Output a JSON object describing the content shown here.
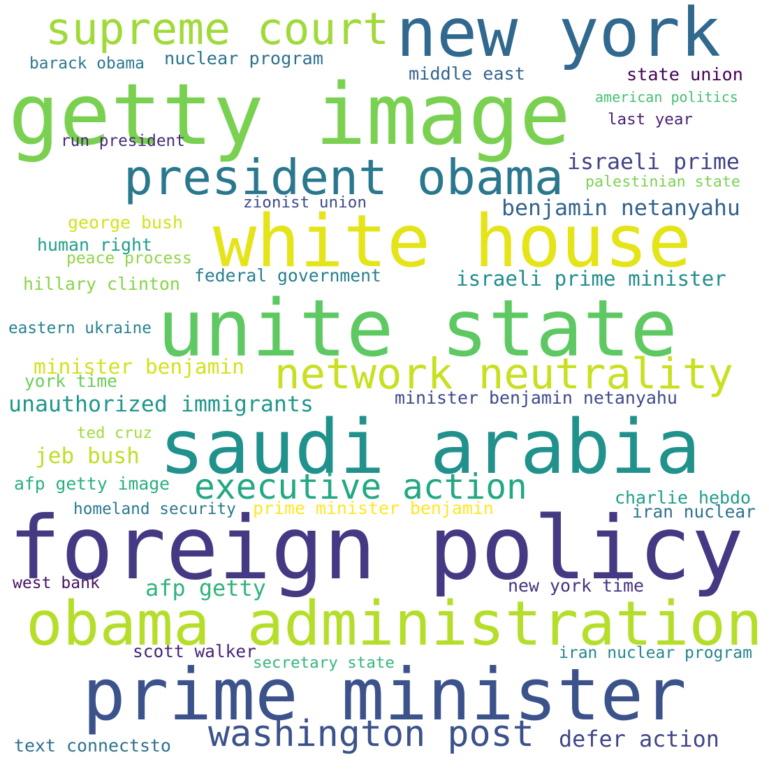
{
  "words": [
    {
      "text": "foreign policy",
      "color": "#443983"
    },
    {
      "text": "white house",
      "color": "#e4e419"
    },
    {
      "text": "unite state",
      "color": "#5ec962"
    },
    {
      "text": "getty image",
      "color": "#7ad151"
    },
    {
      "text": "saudi arabia",
      "color": "#21918c"
    },
    {
      "text": "prime minister",
      "color": "#3b528b"
    },
    {
      "text": "obama administration",
      "color": "#b5de2b"
    },
    {
      "text": "new york",
      "color": "#31688e"
    },
    {
      "text": "president obama",
      "color": "#2a788e"
    },
    {
      "text": "network neutrality",
      "color": "#c8e020"
    },
    {
      "text": "supreme court",
      "color": "#a0da39"
    },
    {
      "text": "executive action",
      "color": "#22a884"
    },
    {
      "text": "washington post",
      "color": "#3b528b"
    },
    {
      "text": "israeli prime",
      "color": "#414487"
    },
    {
      "text": "defer action",
      "color": "#404688"
    },
    {
      "text": "benjamin netanyahu",
      "color": "#33638d"
    },
    {
      "text": "israeli prime minister",
      "color": "#228d8d"
    },
    {
      "text": "unauthorized immigrants",
      "color": "#1f978b"
    },
    {
      "text": "jeb bush",
      "color": "#bddf26"
    },
    {
      "text": "afp getty",
      "color": "#2fb47c"
    },
    {
      "text": "minister benjamin",
      "color": "#d2e21b"
    },
    {
      "text": "state union",
      "color": "#440154"
    },
    {
      "text": "nuclear program",
      "color": "#2c728e"
    },
    {
      "text": "middle east",
      "color": "#33638d"
    },
    {
      "text": "american politics",
      "color": "#44bf70"
    },
    {
      "text": "last year",
      "color": "#481f70"
    },
    {
      "text": "palestinian state",
      "color": "#7ad151"
    },
    {
      "text": "barack obama",
      "color": "#2a788e"
    },
    {
      "text": "run president",
      "color": "#482878"
    },
    {
      "text": "zionist union",
      "color": "#3e4989"
    },
    {
      "text": "george bush",
      "color": "#d2e21b"
    },
    {
      "text": "human right",
      "color": "#1f9e89"
    },
    {
      "text": "peace process",
      "color": "#8fd744"
    },
    {
      "text": "hillary clinton",
      "color": "#86d549"
    },
    {
      "text": "federal government",
      "color": "#277f8e"
    },
    {
      "text": "eastern ukraine",
      "color": "#26828e"
    },
    {
      "text": "york time",
      "color": "#6ccd5a"
    },
    {
      "text": "minister benjamin netanyahu",
      "color": "#3e4989"
    },
    {
      "text": "ted cruz",
      "color": "#a0da39"
    },
    {
      "text": "afp getty image",
      "color": "#29af7f"
    },
    {
      "text": "charlie hebdo",
      "color": "#1f9e89"
    },
    {
      "text": "homeland security",
      "color": "#2a788e"
    },
    {
      "text": "prime minister benjamin",
      "color": "#fde725"
    },
    {
      "text": "iran nuclear",
      "color": "#2c728e"
    },
    {
      "text": "west bank",
      "color": "#471365"
    },
    {
      "text": "new york time",
      "color": "#46327e"
    },
    {
      "text": "scott walker",
      "color": "#482475"
    },
    {
      "text": "secretary state",
      "color": "#35b779"
    },
    {
      "text": "iran nuclear program",
      "color": "#25858e"
    },
    {
      "text": "text connectsto",
      "color": "#2c728e"
    }
  ]
}
